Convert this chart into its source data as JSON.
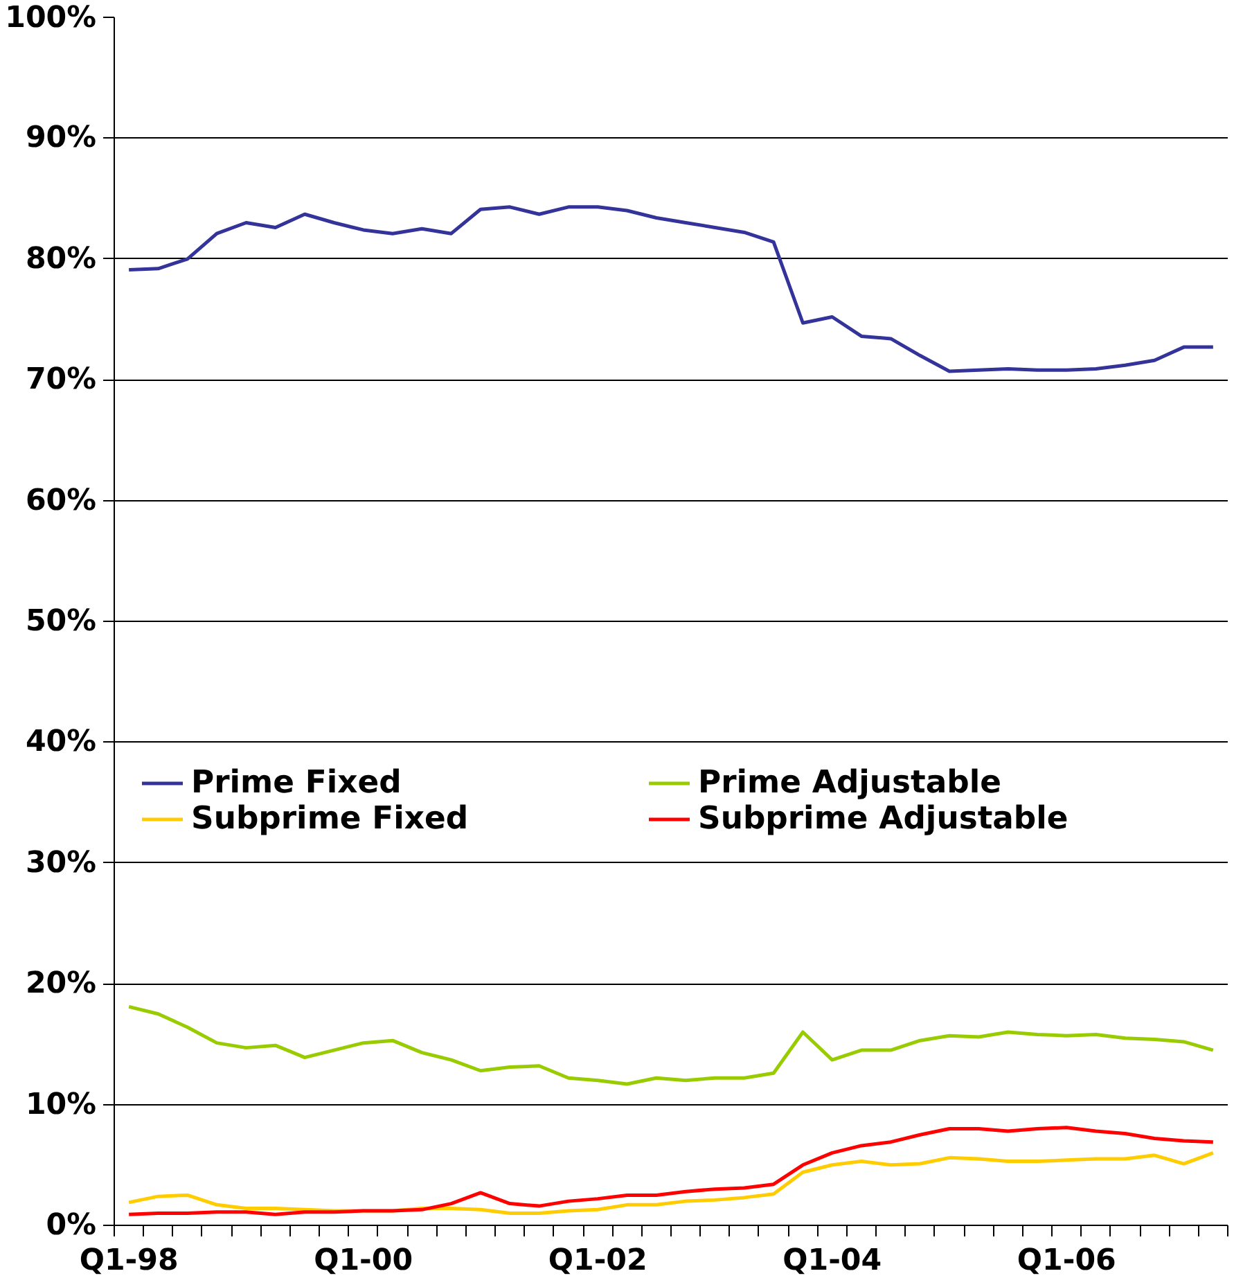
{
  "chart_data": {
    "type": "line",
    "categories": [
      "Q1-98",
      null,
      null,
      null,
      null,
      null,
      null,
      null,
      "Q1-00",
      null,
      null,
      null,
      null,
      null,
      null,
      null,
      "Q1-02",
      null,
      null,
      null,
      null,
      null,
      null,
      null,
      "Q1-04",
      null,
      null,
      null,
      null,
      null,
      null,
      null,
      "Q1-06",
      null,
      null,
      null,
      null,
      null
    ],
    "series": [
      {
        "name": "Prime Fixed",
        "color": "#333399",
        "values": [
          79.1,
          79.2,
          80.0,
          82.1,
          83.0,
          82.6,
          83.7,
          83.0,
          82.4,
          82.1,
          82.5,
          82.1,
          84.1,
          84.3,
          83.7,
          84.3,
          84.3,
          84.0,
          83.4,
          83.0,
          82.6,
          82.2,
          81.4,
          74.7,
          75.2,
          73.6,
          73.4,
          72.0,
          70.7,
          70.8,
          70.9,
          70.8,
          70.8,
          70.9,
          71.2,
          71.6,
          72.7,
          72.7
        ]
      },
      {
        "name": "Subprime Fixed",
        "color": "#ffcc00",
        "values": [
          1.9,
          2.4,
          2.5,
          1.7,
          1.4,
          1.4,
          1.3,
          1.2,
          1.2,
          1.2,
          1.4,
          1.4,
          1.3,
          1.0,
          1.0,
          1.2,
          1.3,
          1.7,
          1.7,
          2.0,
          2.1,
          2.3,
          2.6,
          4.4,
          5.0,
          5.3,
          5.0,
          5.1,
          5.6,
          5.5,
          5.3,
          5.3,
          5.4,
          5.5,
          5.5,
          5.8,
          5.1,
          6.0
        ]
      },
      {
        "name": "Prime Adjustable",
        "color": "#99cc00",
        "values": [
          18.1,
          17.5,
          16.4,
          15.1,
          14.7,
          14.9,
          13.9,
          14.5,
          15.1,
          15.3,
          14.3,
          13.7,
          12.8,
          13.1,
          13.2,
          12.2,
          12.0,
          11.7,
          12.2,
          12.0,
          12.2,
          12.2,
          12.6,
          16.0,
          13.7,
          14.5,
          14.5,
          15.3,
          15.7,
          15.6,
          16.0,
          15.8,
          15.7,
          15.8,
          15.5,
          15.4,
          15.2,
          14.5
        ]
      },
      {
        "name": "Subprime Adjustable",
        "color": "#ff0000",
        "values": [
          0.9,
          1.0,
          1.0,
          1.1,
          1.1,
          0.9,
          1.1,
          1.1,
          1.2,
          1.2,
          1.3,
          1.8,
          2.7,
          1.8,
          1.6,
          2.0,
          2.2,
          2.5,
          2.5,
          2.8,
          3.0,
          3.1,
          3.4,
          5.0,
          6.0,
          6.6,
          6.9,
          7.5,
          8.0,
          8.0,
          7.8,
          8.0,
          8.1,
          7.8,
          7.6,
          7.2,
          7.0,
          6.9
        ]
      }
    ],
    "ylim": [
      0,
      100
    ],
    "yticks": [
      {
        "value": 0,
        "label": "0%"
      },
      {
        "value": 10,
        "label": "10%"
      },
      {
        "value": 20,
        "label": "20%"
      },
      {
        "value": 30,
        "label": "30%"
      },
      {
        "value": 40,
        "label": "40%"
      },
      {
        "value": 50,
        "label": "50%"
      },
      {
        "value": 60,
        "label": "60%"
      },
      {
        "value": 70,
        "label": "70%"
      },
      {
        "value": 80,
        "label": "80%"
      },
      {
        "value": 90,
        "label": "90%"
      },
      {
        "value": 100,
        "label": "100%"
      }
    ],
    "grid": "y",
    "legend": "left",
    "marker": "none",
    "line_style": "solid"
  }
}
